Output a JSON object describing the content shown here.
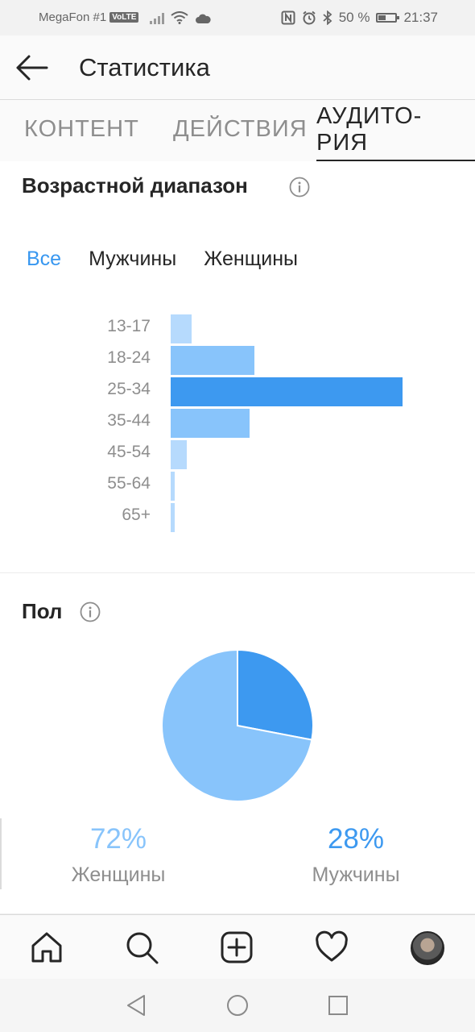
{
  "status_bar": {
    "carrier": "MegaFon #1",
    "volte": "VoLTE",
    "battery_percent": "50 %",
    "battery_level": 0.5,
    "time": "21:37",
    "icons": [
      "signal-icon",
      "wifi-icon",
      "cloud-icon",
      "nfc-icon",
      "alarm-icon",
      "bluetooth-icon",
      "battery-icon"
    ]
  },
  "header": {
    "title": "Статистика",
    "back_icon": "arrow-left-icon"
  },
  "tabs": [
    {
      "label": "КОНТЕНТ",
      "active": false
    },
    {
      "label": "ДЕЙСТВИЯ",
      "active": false
    },
    {
      "label": "АУДИТО-\nРИЯ",
      "active": true
    }
  ],
  "age_section": {
    "title": "Возрастной диапазон",
    "filters": [
      {
        "label": "Все",
        "active": true
      },
      {
        "label": "Мужчины",
        "active": false
      },
      {
        "label": "Женщины",
        "active": false
      }
    ]
  },
  "chart_data": [
    {
      "type": "bar",
      "orientation": "horizontal",
      "title": "Возрастной диапазон",
      "categories": [
        "13-17",
        "18-24",
        "25-34",
        "35-44",
        "45-54",
        "55-64",
        "65+"
      ],
      "values": [
        9,
        36,
        100,
        34,
        7,
        1.5,
        1.5
      ],
      "highlight": "25-34",
      "colors": {
        "highlight": "#3d99f0",
        "mid": "#88c4fb",
        "light": "#b6dafd"
      }
    },
    {
      "type": "pie",
      "title": "Пол",
      "series": [
        {
          "name": "Женщины",
          "value": 72,
          "color": "#88c4fb"
        },
        {
          "name": "Мужчины",
          "value": 28,
          "color": "#3d99f0"
        }
      ]
    }
  ],
  "gender_section": {
    "title": "Пол",
    "women": {
      "percent": "72%",
      "label": "Женщины",
      "color": "#88c4fb"
    },
    "men": {
      "percent": "28%",
      "label": "Мужчины",
      "color": "#3d99f0"
    }
  },
  "bottom_nav": {
    "items": [
      "home-icon",
      "search-icon",
      "add-post-icon",
      "activity-heart-icon",
      "profile-avatar"
    ]
  },
  "system_nav": {
    "items": [
      "back-triangle-icon",
      "home-circle-icon",
      "recents-square-icon"
    ]
  },
  "colors": {
    "accent": "#3897f0",
    "text": "#262626",
    "muted": "#8e8e8e"
  }
}
